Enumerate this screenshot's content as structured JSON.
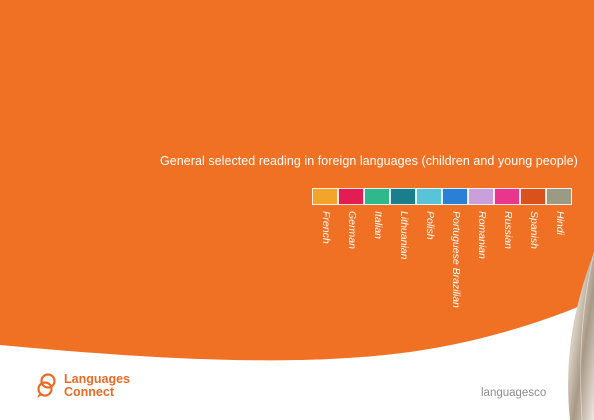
{
  "heading": "General selected reading in foreign languages (children and young people)",
  "languages": [
    {
      "label": "French",
      "color": "#f3a42b"
    },
    {
      "label": "German",
      "color": "#e31d53"
    },
    {
      "label": "Italian",
      "color": "#2eb88b"
    },
    {
      "label": "Lithuanian",
      "color": "#1a7f8c"
    },
    {
      "label": "Polish",
      "color": "#57c4d8"
    },
    {
      "label": "Portuguese Brazilian",
      "color": "#2a7fd6"
    },
    {
      "label": "Romanian",
      "color": "#c9a0dc"
    },
    {
      "label": "Russian",
      "color": "#e8368f"
    },
    {
      "label": "Spanish",
      "color": "#d9521c"
    },
    {
      "label": "Hindi",
      "color": "#9a9a85"
    }
  ],
  "logo": {
    "line1": "Languages",
    "line2": "Connect",
    "icon": "speech-bubbles-icon"
  },
  "website": "languagesco",
  "colors": {
    "background": "#f07124",
    "brand": "#ec6a23",
    "footer": "#ffffff"
  }
}
